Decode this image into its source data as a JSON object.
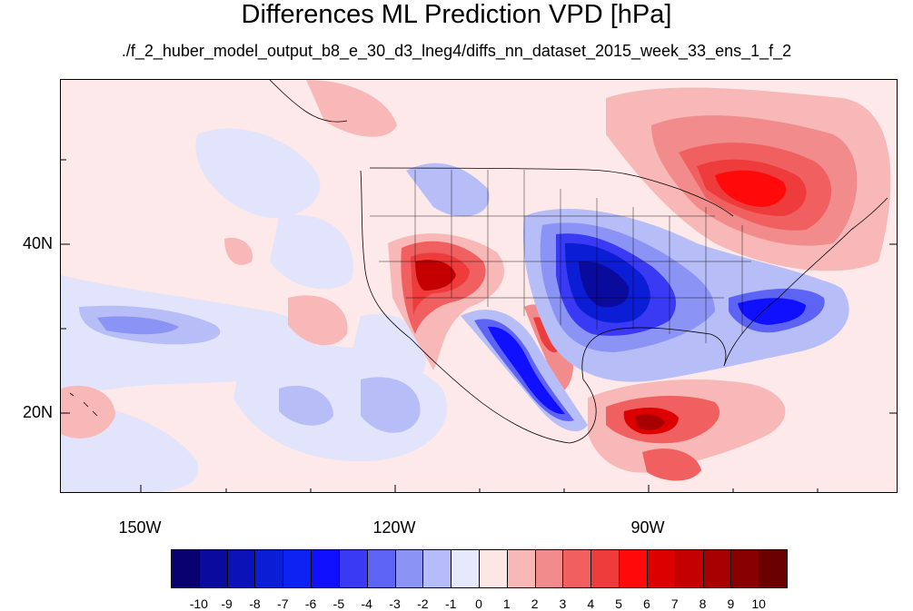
{
  "title": "Differences ML Prediction VPD [hPa]",
  "subtitle": "./f_2_huber_model_output_b8_e_30_d3_lneg4/diffs_nn_dataset_2015_week_33_ens_1_f_2",
  "lat_labels": [
    "40N",
    "20N"
  ],
  "lon_labels": [
    "150W",
    "120W",
    "90W"
  ],
  "colorbar": {
    "ticks": [
      "-10",
      "-9",
      "-8",
      "-7",
      "-6",
      "-5",
      "-4",
      "-3",
      "-2",
      "-1",
      "0",
      "1",
      "2",
      "3",
      "4",
      "5",
      "6",
      "7",
      "8",
      "9",
      "10"
    ],
    "colors": [
      "#08006e",
      "#0a0a9c",
      "#0b12b8",
      "#0c1dd6",
      "#0c22f0",
      "#1010ff",
      "#3a3af5",
      "#5d63f2",
      "#8b93f5",
      "#b6bcf7",
      "#e6e8fb",
      "#fde6e6",
      "#f8b8b8",
      "#f28b8b",
      "#f06060",
      "#ee3b3b",
      "#ff0a0a",
      "#dd0000",
      "#c40000",
      "#a80000",
      "#880000",
      "#6a0000"
    ]
  },
  "colors": {
    "background_anomaly": "#fde9e9",
    "coastline": "#000000"
  }
}
